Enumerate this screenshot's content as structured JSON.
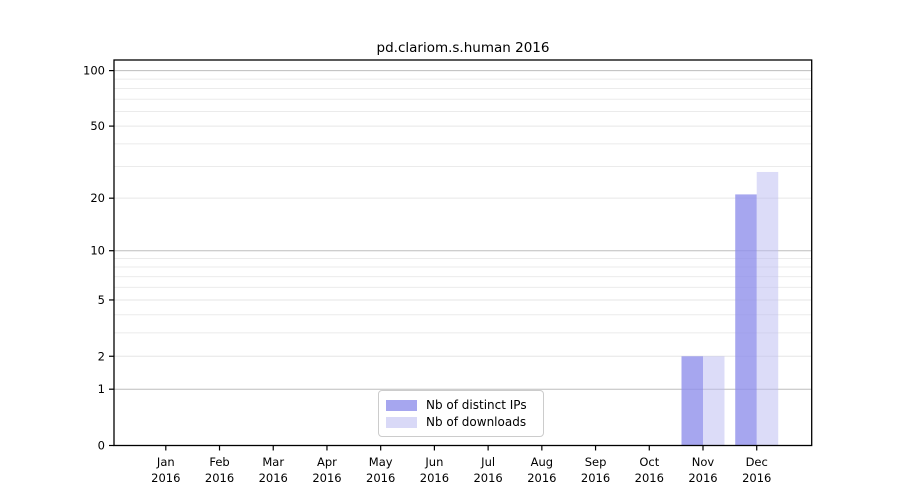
{
  "chart_data": {
    "type": "bar",
    "title": "pd.clariom.s.human 2016",
    "categories": [
      "Jan",
      "Feb",
      "Mar",
      "Apr",
      "May",
      "Jun",
      "Jul",
      "Aug",
      "Sep",
      "Oct",
      "Nov",
      "Dec"
    ],
    "category_year": "2016",
    "series": [
      {
        "name": "Nb of distinct IPs",
        "color": "#a6a6ef",
        "fill": "rgba(144,144,235,0.8)",
        "values": [
          0,
          0,
          0,
          0,
          0,
          0,
          0,
          0,
          0,
          0,
          2,
          21
        ]
      },
      {
        "name": "Nb of downloads",
        "color": "#d9d9f7",
        "fill": "rgba(185,185,241,0.5)",
        "values": [
          0,
          0,
          0,
          0,
          0,
          0,
          0,
          0,
          0,
          0,
          2,
          28
        ]
      }
    ],
    "yscale": "log10(1+y)",
    "ylim": [
      0,
      114
    ],
    "yticks": [
      0,
      1,
      2,
      5,
      10,
      20,
      50,
      100
    ],
    "gridlines_dark": [
      1,
      10,
      100
    ],
    "gridlines_faint": [
      2,
      5,
      20,
      50
    ],
    "gridlines_minor": [
      3,
      4,
      6,
      7,
      8,
      9,
      30,
      40,
      60,
      70,
      80,
      90
    ],
    "grid": "on",
    "legend_position": "lower center",
    "xlabel": "",
    "ylabel": ""
  },
  "colors": {
    "background": "#ffffff",
    "axis": "#000000",
    "text": "#000000",
    "grid_minor": "#ebebeb",
    "grid_faint": "#e6e6e6",
    "grid_dark": "#bdbdbd",
    "legend_border": "#cccccc"
  }
}
